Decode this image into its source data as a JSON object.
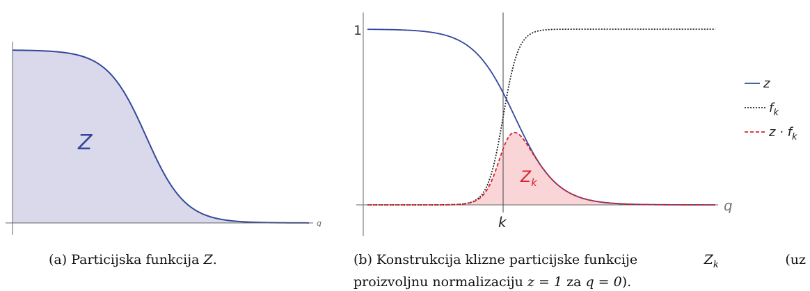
{
  "panel_a": {
    "area_label": "Z",
    "axis_label": "q",
    "caption": {
      "prefix": "(a) Particijska funkcija",
      "symbol": "Z",
      "end": "."
    }
  },
  "panel_b": {
    "y_label": "1",
    "x_marker": "k",
    "axis_label": "q",
    "area_label": {
      "main": "Z",
      "sub": "k"
    },
    "legend": [
      {
        "main": "z"
      },
      {
        "main": "f",
        "sub": "k"
      },
      {
        "main": "z · f",
        "sub": "k"
      }
    ],
    "caption": {
      "line1_a": "(b) Konstrukcija klizne particijske funkcije",
      "symbol": "Z",
      "symbol_sub": "k",
      "line1_b": "(uz",
      "line2_a": "proizvoljnu normalizaciju",
      "eq": "z = 1",
      "mid": "za",
      "eq2": "q = 0",
      "end": ")."
    }
  }
}
